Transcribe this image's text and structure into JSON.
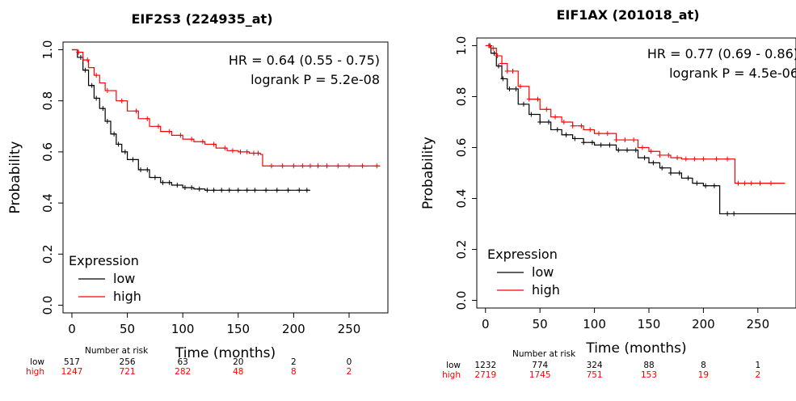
{
  "chart_data": [
    {
      "type": "line",
      "subtype": "kaplan-meier",
      "title": "EIF2S3 (224935_at)",
      "xlabel": "Time (months)",
      "ylabel": "Probability",
      "xlim": [
        -8,
        285
      ],
      "ylim": [
        -0.03,
        1.03
      ],
      "xticks": [
        0,
        50,
        100,
        150,
        200,
        250
      ],
      "yticks": [
        0.0,
        0.2,
        0.4,
        0.6,
        0.8,
        1.0
      ],
      "xtick_labels": [
        "0",
        "50",
        "100",
        "150",
        "200",
        "250"
      ],
      "ytick_labels": [
        "0.0",
        "0.2",
        "0.4",
        "0.6",
        "0.8",
        "1.0"
      ],
      "annotations": [
        "HR = 0.64 (0.55 - 0.75)",
        "logrank P = 5.2e-08"
      ],
      "legend": {
        "title": "Expression",
        "placement": "bottom-left"
      },
      "series": [
        {
          "name": "low",
          "color": "#000000",
          "points": [
            [
              0,
              1.0
            ],
            [
              5,
              0.97
            ],
            [
              10,
              0.92
            ],
            [
              15,
              0.86
            ],
            [
              20,
              0.81
            ],
            [
              25,
              0.77
            ],
            [
              30,
              0.72
            ],
            [
              35,
              0.67
            ],
            [
              40,
              0.63
            ],
            [
              45,
              0.6
            ],
            [
              50,
              0.57
            ],
            [
              60,
              0.53
            ],
            [
              70,
              0.5
            ],
            [
              80,
              0.48
            ],
            [
              90,
              0.47
            ],
            [
              100,
              0.46
            ],
            [
              110,
              0.455
            ],
            [
              120,
              0.45
            ],
            [
              130,
              0.45
            ],
            [
              215,
              0.45
            ]
          ],
          "censor_x": [
            8,
            12,
            18,
            22,
            28,
            32,
            38,
            42,
            48,
            55,
            62,
            68,
            75,
            82,
            88,
            95,
            102,
            108,
            115,
            122,
            128,
            135,
            142,
            150,
            158,
            165,
            175,
            185,
            195,
            205,
            212
          ]
        },
        {
          "name": "high",
          "color": "#ff0000",
          "points": [
            [
              0,
              1.0
            ],
            [
              5,
              0.99
            ],
            [
              10,
              0.96
            ],
            [
              15,
              0.93
            ],
            [
              20,
              0.9
            ],
            [
              25,
              0.87
            ],
            [
              30,
              0.84
            ],
            [
              40,
              0.8
            ],
            [
              50,
              0.76
            ],
            [
              60,
              0.73
            ],
            [
              70,
              0.7
            ],
            [
              80,
              0.68
            ],
            [
              90,
              0.665
            ],
            [
              100,
              0.65
            ],
            [
              110,
              0.64
            ],
            [
              120,
              0.63
            ],
            [
              130,
              0.615
            ],
            [
              140,
              0.605
            ],
            [
              150,
              0.6
            ],
            [
              160,
              0.595
            ],
            [
              170,
              0.59
            ],
            [
              172,
              0.545
            ],
            [
              278,
              0.545
            ]
          ],
          "censor_x": [
            6,
            14,
            22,
            32,
            45,
            58,
            68,
            78,
            88,
            98,
            108,
            118,
            128,
            138,
            145,
            152,
            158,
            164,
            168,
            180,
            190,
            200,
            208,
            215,
            222,
            230,
            240,
            250,
            262,
            275
          ]
        }
      ],
      "risk_table": {
        "header": "Number at risk",
        "rows": [
          {
            "label": "low",
            "color": "#000000",
            "values": [
              "517",
              "256",
              "63",
              "20",
              "2",
              "0"
            ]
          },
          {
            "label": "high",
            "color": "#ff0000",
            "values": [
              "1247",
              "721",
              "282",
              "48",
              "8",
              "2"
            ]
          }
        ]
      }
    },
    {
      "type": "line",
      "subtype": "kaplan-meier",
      "title": "EIF1AX (201018_at)",
      "xlabel": "Time (months)",
      "ylabel": "Probability",
      "xlim": [
        -8,
        285
      ],
      "ylim": [
        -0.03,
        1.03
      ],
      "xticks": [
        0,
        50,
        100,
        150,
        200,
        250
      ],
      "yticks": [
        0.0,
        0.2,
        0.4,
        0.6,
        0.8,
        1.0
      ],
      "xtick_labels": [
        "0",
        "50",
        "100",
        "150",
        "200",
        "250"
      ],
      "ytick_labels": [
        "0.0",
        "0.2",
        "0.4",
        "0.6",
        "0.8",
        "1.0"
      ],
      "annotations": [
        "HR = 0.77 (0.69 - 0.86)",
        "logrank P = 4.5e-06"
      ],
      "legend": {
        "title": "Expression",
        "placement": "bottom-left"
      },
      "series": [
        {
          "name": "low",
          "color": "#000000",
          "points": [
            [
              0,
              1.0
            ],
            [
              5,
              0.97
            ],
            [
              10,
              0.92
            ],
            [
              15,
              0.87
            ],
            [
              20,
              0.83
            ],
            [
              30,
              0.77
            ],
            [
              40,
              0.73
            ],
            [
              50,
              0.7
            ],
            [
              60,
              0.67
            ],
            [
              70,
              0.65
            ],
            [
              80,
              0.635
            ],
            [
              90,
              0.62
            ],
            [
              100,
              0.61
            ],
            [
              120,
              0.59
            ],
            [
              140,
              0.56
            ],
            [
              150,
              0.54
            ],
            [
              160,
              0.52
            ],
            [
              170,
              0.5
            ],
            [
              180,
              0.48
            ],
            [
              190,
              0.46
            ],
            [
              200,
              0.45
            ],
            [
              215,
              0.45
            ],
            [
              215,
              0.34
            ],
            [
              285,
              0.34
            ]
          ],
          "censor_x": [
            4,
            8,
            12,
            16,
            22,
            28,
            35,
            42,
            50,
            58,
            66,
            74,
            82,
            90,
            98,
            106,
            114,
            122,
            130,
            138,
            146,
            154,
            162,
            170,
            178,
            186,
            194,
            202,
            210,
            222,
            228
          ]
        },
        {
          "name": "high",
          "color": "#ff0000",
          "points": [
            [
              0,
              1.0
            ],
            [
              5,
              0.99
            ],
            [
              10,
              0.96
            ],
            [
              15,
              0.93
            ],
            [
              20,
              0.9
            ],
            [
              30,
              0.84
            ],
            [
              40,
              0.79
            ],
            [
              50,
              0.75
            ],
            [
              60,
              0.72
            ],
            [
              70,
              0.7
            ],
            [
              80,
              0.685
            ],
            [
              90,
              0.67
            ],
            [
              100,
              0.655
            ],
            [
              120,
              0.63
            ],
            [
              140,
              0.6
            ],
            [
              150,
              0.585
            ],
            [
              160,
              0.57
            ],
            [
              170,
              0.56
            ],
            [
              180,
              0.555
            ],
            [
              200,
              0.555
            ],
            [
              229,
              0.555
            ],
            [
              229,
              0.46
            ],
            [
              275,
              0.46
            ]
          ],
          "censor_x": [
            3,
            7,
            11,
            15,
            20,
            25,
            32,
            40,
            48,
            56,
            64,
            72,
            80,
            88,
            96,
            104,
            112,
            120,
            128,
            136,
            144,
            152,
            160,
            168,
            176,
            184,
            192,
            200,
            212,
            222,
            232,
            238,
            244,
            252,
            262
          ]
        }
      ],
      "risk_table": {
        "header": "Number at risk",
        "rows": [
          {
            "label": "low",
            "color": "#000000",
            "values": [
              "1232",
              "774",
              "324",
              "88",
              "8",
              "1"
            ]
          },
          {
            "label": "high",
            "color": "#ff0000",
            "values": [
              "2719",
              "1745",
              "751",
              "153",
              "19",
              "2"
            ]
          }
        ]
      }
    }
  ]
}
